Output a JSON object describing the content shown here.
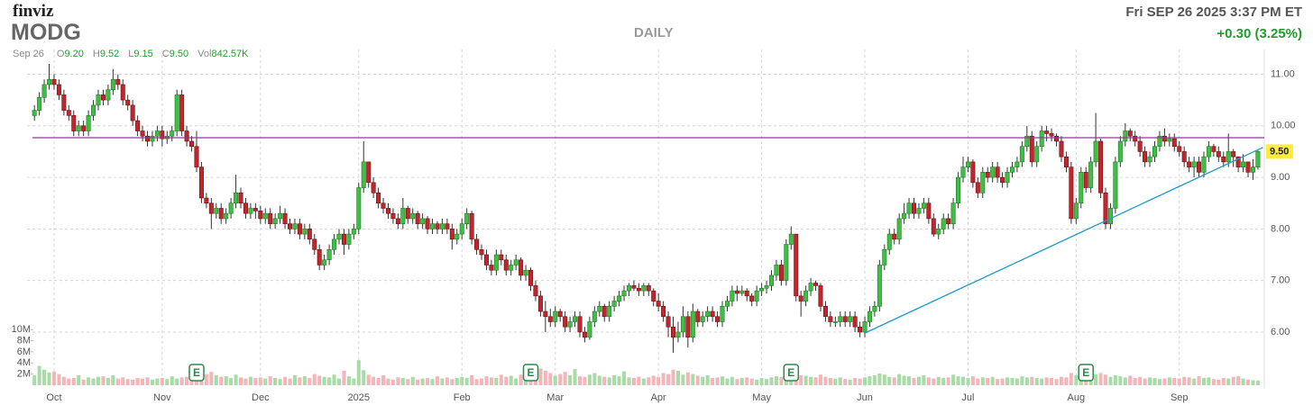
{
  "header": {
    "logo": "finviz",
    "ticker": "MODG",
    "timeframe": "DAILY",
    "datetime": "Fri SEP 26 2025 3:37 PM ET",
    "change": "+0.30 (3.25%)",
    "quote": {
      "date": "Sep 26",
      "o_label": "O",
      "o": "9.20",
      "h_label": "H",
      "h": "9.52",
      "l_label": "L",
      "l": "9.15",
      "c_label": "C",
      "c": "9.50",
      "vol_label": "Vol",
      "vol": "842.57K"
    }
  },
  "chart_data": {
    "type": "candlestick",
    "grid": true,
    "xlim": [
      -1.5,
      250.3
    ],
    "xticks": [
      {
        "value": 4,
        "label": "Oct"
      },
      {
        "value": 26,
        "label": "Nov"
      },
      {
        "value": 46,
        "label": "Dec"
      },
      {
        "value": 66,
        "label": "2025"
      },
      {
        "value": 87,
        "label": "Feb"
      },
      {
        "value": 106,
        "label": "Mar"
      },
      {
        "value": 127,
        "label": "Apr"
      },
      {
        "value": 148,
        "label": "May"
      },
      {
        "value": 169,
        "label": "Jun"
      },
      {
        "value": 190,
        "label": "Jul"
      },
      {
        "value": 212,
        "label": "Aug"
      },
      {
        "value": 233,
        "label": "Sep"
      }
    ],
    "ylim": [
      5.72,
      11.48
    ],
    "yticks": [
      {
        "value": 6,
        "label": "6.00"
      },
      {
        "value": 7,
        "label": "7.00"
      },
      {
        "value": 8,
        "label": "8.00"
      },
      {
        "value": 9,
        "label": "9.00"
      },
      {
        "value": 10,
        "label": "10.00"
      },
      {
        "value": 11,
        "label": "11.00"
      }
    ],
    "up_color": "#3fbf45",
    "down_color": "#c0262c",
    "open": [
      10.2,
      10.3,
      10.55,
      10.8,
      10.9,
      10.8,
      10.6,
      10.3,
      10.2,
      9.9,
      10.0,
      9.9,
      10.2,
      10.4,
      10.6,
      10.5,
      10.7,
      10.9,
      10.8,
      10.5,
      10.4,
      10.1,
      9.9,
      9.8,
      9.7,
      9.8,
      9.9,
      9.75,
      9.8,
      9.9,
      10.6,
      9.9,
      9.7,
      9.6,
      9.2,
      8.6,
      8.5,
      8.3,
      8.4,
      8.2,
      8.3,
      8.5,
      8.7,
      8.5,
      8.3,
      8.4,
      8.35,
      8.2,
      8.3,
      8.1,
      8.2,
      8.3,
      8.1,
      8.0,
      8.1,
      7.9,
      8.0,
      7.8,
      7.6,
      7.3,
      7.4,
      7.6,
      7.8,
      7.9,
      7.7,
      7.9,
      8.0,
      8.8,
      9.3,
      8.9,
      8.7,
      8.5,
      8.4,
      8.3,
      8.2,
      8.1,
      8.4,
      8.2,
      8.3,
      8.1,
      8.2,
      8.0,
      8.1,
      8.0,
      8.1,
      8.0,
      7.8,
      7.9,
      8.1,
      8.3,
      7.8,
      7.6,
      7.5,
      7.3,
      7.2,
      7.5,
      7.4,
      7.2,
      7.3,
      7.4,
      7.1,
      7.2,
      6.9,
      6.7,
      6.4,
      6.3,
      6.2,
      6.4,
      6.3,
      6.1,
      6.2,
      6.3,
      6.0,
      5.9,
      6.2,
      6.4,
      6.5,
      6.3,
      6.5,
      6.6,
      6.7,
      6.8,
      6.9,
      6.85,
      6.8,
      6.9,
      6.8,
      6.6,
      6.5,
      6.3,
      6.1,
      5.9,
      6.0,
      6.3,
      5.9,
      6.4,
      6.2,
      6.3,
      6.4,
      6.3,
      6.2,
      6.5,
      6.6,
      6.8,
      6.75,
      6.8,
      6.7,
      6.6,
      6.8,
      6.85,
      6.9,
      7.1,
      7.3,
      7.0,
      7.7,
      7.9,
      6.7,
      6.6,
      6.8,
      6.95,
      6.9,
      6.5,
      6.3,
      6.2,
      6.2,
      6.3,
      6.2,
      6.3,
      6.1,
      6.0,
      6.2,
      6.4,
      6.5,
      7.3,
      7.6,
      7.9,
      7.8,
      8.2,
      8.3,
      8.5,
      8.3,
      8.4,
      8.5,
      8.2,
      7.9,
      8.0,
      8.2,
      8.1,
      8.5,
      9.0,
      9.2,
      9.3,
      8.9,
      8.7,
      9.1,
      9.0,
      9.2,
      9.0,
      8.9,
      9.1,
      9.2,
      9.3,
      9.6,
      9.8,
      9.3,
      9.6,
      9.9,
      9.85,
      9.8,
      9.7,
      9.4,
      9.2,
      8.2,
      8.5,
      9.1,
      8.8,
      9.3,
      9.7,
      8.7,
      8.1,
      8.4,
      9.3,
      9.7,
      9.9,
      9.8,
      9.7,
      9.5,
      9.3,
      9.4,
      9.6,
      9.8,
      9.7,
      9.75,
      9.6,
      9.5,
      9.3,
      9.2,
      9.3,
      9.1,
      9.4,
      9.6,
      9.5,
      9.4,
      9.3,
      9.5,
      9.4,
      9.2,
      9.3,
      9.1,
      9.2
    ],
    "high": [
      10.4,
      10.65,
      10.9,
      11.2,
      11.0,
      10.9,
      10.7,
      10.4,
      10.3,
      10.1,
      10.1,
      10.3,
      10.5,
      10.7,
      10.7,
      10.8,
      11.1,
      11.0,
      10.9,
      10.6,
      10.5,
      10.2,
      10.0,
      9.9,
      9.9,
      10.0,
      10.0,
      9.9,
      10.0,
      10.7,
      10.7,
      10.0,
      9.8,
      9.9,
      9.3,
      8.7,
      8.6,
      8.5,
      8.5,
      8.4,
      8.6,
      9.05,
      8.8,
      8.6,
      8.5,
      8.5,
      8.45,
      8.4,
      8.4,
      8.3,
      8.45,
      8.4,
      8.2,
      8.2,
      8.2,
      8.1,
      8.1,
      7.9,
      7.7,
      7.5,
      7.7,
      7.9,
      8.0,
      8.0,
      8.0,
      8.1,
      8.9,
      9.7,
      9.3,
      9.0,
      8.8,
      8.6,
      8.5,
      8.4,
      8.3,
      8.6,
      8.45,
      8.4,
      8.35,
      8.3,
      8.25,
      8.2,
      8.15,
      8.2,
      8.2,
      8.1,
      8.0,
      8.2,
      8.4,
      8.35,
      7.9,
      7.7,
      7.6,
      7.4,
      7.6,
      7.6,
      7.5,
      7.4,
      7.5,
      7.45,
      7.3,
      7.25,
      7.0,
      6.8,
      6.6,
      6.45,
      6.5,
      6.45,
      6.4,
      6.3,
      6.4,
      6.4,
      6.1,
      6.3,
      6.5,
      6.6,
      6.55,
      6.6,
      6.7,
      6.8,
      6.9,
      6.95,
      7.0,
      6.95,
      6.95,
      6.95,
      6.85,
      6.75,
      6.6,
      6.4,
      6.3,
      6.2,
      6.5,
      6.4,
      6.55,
      6.45,
      6.4,
      6.5,
      6.5,
      6.4,
      6.6,
      6.7,
      6.9,
      6.9,
      6.9,
      6.85,
      6.75,
      6.9,
      6.95,
      7.0,
      7.2,
      7.4,
      7.4,
      7.8,
      8.05,
      7.9,
      6.8,
      6.9,
      7.05,
      7.0,
      6.95,
      6.6,
      6.4,
      6.3,
      6.4,
      6.4,
      6.4,
      6.4,
      6.2,
      6.3,
      6.5,
      6.6,
      7.4,
      7.7,
      8.0,
      8.0,
      8.3,
      8.5,
      8.6,
      8.6,
      8.5,
      8.6,
      8.6,
      8.3,
      8.1,
      8.3,
      8.3,
      8.6,
      9.1,
      9.4,
      9.4,
      9.35,
      9.0,
      9.2,
      9.2,
      9.3,
      9.3,
      9.1,
      9.2,
      9.3,
      9.4,
      9.7,
      10.0,
      9.9,
      9.7,
      10.0,
      10.0,
      9.95,
      9.85,
      9.8,
      9.5,
      9.3,
      8.6,
      9.2,
      9.2,
      9.4,
      10.25,
      9.75,
      8.8,
      8.5,
      9.4,
      9.8,
      10.05,
      9.95,
      9.9,
      9.8,
      9.6,
      9.5,
      9.7,
      9.9,
      9.95,
      9.85,
      9.85,
      9.7,
      9.6,
      9.4,
      9.4,
      9.4,
      9.5,
      9.7,
      9.65,
      9.6,
      9.5,
      9.85,
      9.55,
      9.4,
      9.45,
      9.3,
      9.35,
      9.52
    ],
    "low": [
      10.1,
      10.2,
      10.45,
      10.7,
      10.7,
      10.5,
      10.2,
      10.1,
      9.8,
      9.8,
      9.8,
      9.8,
      10.1,
      10.3,
      10.4,
      10.4,
      10.6,
      10.7,
      10.4,
      10.3,
      10.0,
      9.8,
      9.7,
      9.6,
      9.6,
      9.7,
      9.6,
      9.65,
      9.7,
      9.8,
      9.8,
      9.6,
      9.5,
      9.1,
      8.5,
      8.4,
      8.0,
      8.2,
      8.1,
      8.1,
      8.2,
      8.4,
      8.4,
      8.2,
      8.2,
      8.2,
      8.1,
      8.1,
      8.0,
      8.0,
      8.1,
      8.0,
      7.9,
      7.9,
      7.8,
      7.8,
      7.7,
      7.5,
      7.2,
      7.2,
      7.3,
      7.5,
      7.7,
      7.5,
      7.6,
      7.8,
      7.9,
      8.7,
      8.8,
      8.6,
      8.4,
      8.3,
      8.2,
      8.1,
      8.0,
      8.0,
      8.1,
      8.1,
      8.0,
      8.0,
      7.9,
      7.9,
      7.9,
      7.9,
      7.9,
      7.6,
      7.7,
      7.8,
      8.0,
      7.7,
      7.5,
      7.4,
      7.2,
      7.1,
      7.1,
      7.3,
      7.1,
      7.1,
      7.2,
      7.0,
      7.0,
      6.8,
      6.6,
      6.3,
      6.0,
      6.1,
      6.1,
      6.2,
      6.0,
      6.0,
      6.1,
      5.9,
      5.8,
      5.85,
      6.1,
      6.3,
      6.2,
      6.2,
      6.4,
      6.5,
      6.6,
      6.7,
      6.8,
      6.7,
      6.7,
      6.7,
      6.5,
      6.4,
      6.2,
      5.9,
      5.6,
      5.8,
      5.9,
      5.7,
      5.8,
      6.1,
      6.1,
      6.2,
      6.2,
      6.1,
      6.1,
      6.4,
      6.5,
      6.6,
      6.7,
      6.6,
      6.5,
      6.5,
      6.7,
      6.75,
      6.8,
      7.0,
      6.9,
      6.9,
      7.6,
      6.6,
      6.3,
      6.5,
      6.7,
      6.8,
      6.4,
      6.2,
      6.1,
      6.1,
      6.1,
      6.1,
      6.1,
      6.0,
      5.9,
      5.9,
      6.1,
      6.3,
      6.4,
      7.2,
      7.5,
      7.7,
      7.7,
      8.1,
      8.2,
      8.2,
      8.2,
      8.3,
      8.1,
      7.85,
      7.8,
      7.9,
      8.0,
      8.0,
      8.4,
      8.9,
      9.1,
      8.8,
      8.6,
      8.6,
      8.9,
      8.9,
      8.9,
      8.8,
      8.8,
      9.0,
      9.1,
      9.2,
      9.5,
      9.2,
      9.2,
      9.5,
      9.7,
      9.7,
      9.6,
      9.3,
      9.1,
      8.1,
      8.1,
      8.4,
      8.7,
      8.7,
      9.2,
      8.6,
      8.0,
      8.0,
      8.3,
      9.2,
      9.6,
      9.7,
      9.6,
      9.4,
      9.2,
      9.2,
      9.3,
      9.5,
      9.6,
      9.6,
      9.5,
      9.4,
      9.2,
      9.1,
      9.0,
      9.0,
      9.0,
      9.3,
      9.4,
      9.3,
      9.2,
      9.2,
      9.2,
      9.1,
      9.1,
      9.0,
      8.95,
      9.15
    ],
    "close": [
      10.3,
      10.55,
      10.8,
      10.9,
      10.8,
      10.6,
      10.3,
      10.2,
      9.9,
      10.0,
      9.9,
      10.2,
      10.4,
      10.6,
      10.5,
      10.7,
      10.9,
      10.8,
      10.5,
      10.4,
      10.1,
      9.9,
      9.8,
      9.7,
      9.8,
      9.9,
      9.75,
      9.8,
      9.9,
      10.6,
      9.9,
      9.7,
      9.6,
      9.2,
      8.6,
      8.5,
      8.3,
      8.4,
      8.2,
      8.3,
      8.5,
      8.7,
      8.5,
      8.3,
      8.4,
      8.35,
      8.2,
      8.3,
      8.1,
      8.2,
      8.3,
      8.1,
      8.0,
      8.1,
      7.9,
      8.0,
      7.8,
      7.6,
      7.3,
      7.4,
      7.6,
      7.8,
      7.9,
      7.7,
      7.9,
      8.0,
      8.8,
      9.3,
      8.9,
      8.7,
      8.5,
      8.4,
      8.3,
      8.2,
      8.1,
      8.4,
      8.2,
      8.3,
      8.1,
      8.2,
      8.0,
      8.1,
      8.0,
      8.1,
      8.0,
      7.8,
      7.9,
      8.1,
      8.3,
      7.8,
      7.6,
      7.5,
      7.3,
      7.2,
      7.5,
      7.4,
      7.2,
      7.3,
      7.4,
      7.1,
      7.2,
      6.9,
      6.7,
      6.4,
      6.3,
      6.2,
      6.4,
      6.3,
      6.1,
      6.2,
      6.3,
      6.0,
      5.9,
      6.2,
      6.4,
      6.5,
      6.3,
      6.5,
      6.6,
      6.7,
      6.8,
      6.9,
      6.85,
      6.8,
      6.9,
      6.8,
      6.6,
      6.5,
      6.3,
      6.1,
      5.9,
      6.0,
      6.3,
      5.9,
      6.4,
      6.2,
      6.3,
      6.4,
      6.3,
      6.2,
      6.5,
      6.6,
      6.8,
      6.75,
      6.8,
      6.7,
      6.6,
      6.8,
      6.85,
      6.9,
      7.1,
      7.3,
      7.0,
      7.7,
      7.9,
      6.7,
      6.6,
      6.8,
      6.95,
      6.9,
      6.5,
      6.3,
      6.2,
      6.2,
      6.3,
      6.2,
      6.3,
      6.1,
      6.0,
      6.2,
      6.4,
      6.5,
      7.3,
      7.6,
      7.9,
      7.8,
      8.2,
      8.3,
      8.5,
      8.3,
      8.4,
      8.5,
      8.2,
      7.9,
      8.0,
      8.2,
      8.1,
      8.5,
      9.0,
      9.2,
      9.3,
      8.9,
      8.7,
      9.1,
      9.0,
      9.2,
      9.0,
      8.9,
      9.1,
      9.2,
      9.3,
      9.6,
      9.8,
      9.3,
      9.6,
      9.9,
      9.85,
      9.8,
      9.7,
      9.4,
      9.2,
      8.2,
      8.5,
      9.1,
      8.8,
      9.3,
      9.7,
      8.7,
      8.1,
      8.4,
      9.3,
      9.7,
      9.9,
      9.8,
      9.7,
      9.5,
      9.3,
      9.4,
      9.6,
      9.8,
      9.7,
      9.75,
      9.6,
      9.5,
      9.3,
      9.2,
      9.3,
      9.1,
      9.4,
      9.6,
      9.5,
      9.4,
      9.3,
      9.5,
      9.4,
      9.2,
      9.3,
      9.1,
      9.2,
      9.5
    ],
    "volume": {
      "ylim": [
        0,
        10.2
      ],
      "up_color": "#a8dba5",
      "down_color": "#f5b5b8",
      "yticks": [
        {
          "value": 2,
          "label": "2M"
        },
        {
          "value": 4,
          "label": "4M"
        },
        {
          "value": 6,
          "label": "6M"
        },
        {
          "value": 8,
          "label": "8M"
        },
        {
          "value": 10,
          "label": "10M"
        }
      ],
      "values": [
        1.8,
        3.5,
        2.8,
        2.3,
        2.5,
        2.0,
        1.5,
        1.2,
        1.3,
        1.8,
        1.0,
        1.4,
        1.2,
        1.5,
        1.6,
        1.3,
        1.8,
        1.2,
        1.4,
        1.1,
        1.0,
        1.3,
        1.2,
        1.4,
        1.0,
        1.2,
        1.3,
        1.1,
        1.6,
        1.2,
        1.4,
        1.5,
        1.2,
        1.1,
        3.3,
        2.0,
        2.4,
        1.8,
        1.5,
        1.6,
        1.3,
        1.9,
        1.4,
        1.2,
        1.5,
        1.3,
        1.4,
        1.2,
        1.6,
        1.3,
        1.1,
        1.5,
        1.2,
        1.8,
        1.4,
        1.6,
        1.3,
        2.0,
        1.7,
        1.5,
        1.4,
        1.9,
        1.2,
        2.6,
        1.6,
        1.2,
        4.5,
        2.7,
        1.9,
        1.5,
        1.3,
        1.8,
        1.2,
        1.0,
        1.4,
        1.3,
        1.1,
        1.5,
        1.0,
        1.2,
        1.3,
        1.1,
        1.6,
        1.2,
        1.4,
        1.1,
        1.3,
        1.5,
        1.3,
        1.8,
        1.1,
        1.2,
        1.6,
        1.4,
        1.3,
        1.9,
        1.5,
        1.7,
        1.2,
        1.9,
        1.4,
        1.6,
        2.3,
        3.0,
        2.6,
        2.2,
        1.7,
        2.0,
        2.4,
        1.8,
        2.9,
        1.6,
        1.5,
        1.9,
        2.2,
        1.7,
        1.5,
        1.4,
        1.8,
        1.6,
        2.5,
        1.4,
        1.3,
        1.5,
        1.2,
        1.4,
        1.7,
        1.5,
        2.2,
        2.0,
        2.8,
        2.6,
        1.9,
        2.3,
        2.0,
        1.7,
        1.5,
        1.8,
        1.3,
        1.4,
        1.6,
        1.2,
        1.5,
        1.1,
        1.3,
        1.4,
        1.2,
        1.0,
        1.3,
        1.1,
        1.4,
        1.6,
        1.5,
        2.3,
        3.2,
        2.0,
        1.8,
        1.7,
        1.5,
        1.4,
        1.9,
        1.5,
        1.3,
        1.2,
        1.4,
        1.1,
        1.0,
        1.3,
        1.2,
        1.4,
        1.6,
        1.8,
        2.1,
        1.9,
        1.5,
        1.4,
        2.0,
        1.7,
        1.6,
        1.3,
        1.5,
        1.8,
        1.4,
        1.2,
        1.5,
        1.3,
        1.4,
        1.9,
        1.6,
        1.5,
        1.3,
        1.6,
        1.2,
        1.4,
        1.3,
        1.5,
        1.1,
        1.2,
        1.4,
        1.3,
        1.2,
        1.6,
        1.4,
        1.5,
        1.3,
        1.2,
        1.4,
        1.3,
        1.1,
        1.5,
        1.4,
        2.2,
        1.8,
        1.7,
        1.5,
        1.9,
        2.0,
        2.2,
        1.9,
        1.5,
        1.8,
        1.6,
        1.4,
        1.7,
        1.3,
        1.5,
        1.2,
        1.4,
        1.3,
        1.1,
        1.2,
        1.4,
        1.3,
        1.2,
        1.5,
        1.4,
        1.2,
        1.6,
        1.3,
        1.4,
        1.1,
        1.0,
        1.3,
        1.2,
        1.5,
        1.6,
        1.2,
        1.0,
        0.9,
        0.84257
      ]
    },
    "hline": {
      "value": 9.77,
      "color": "#8a3b96"
    },
    "trendline": {
      "x": [
        169,
        250
      ],
      "y": [
        5.98,
        9.58
      ],
      "color": "#1c9ac7"
    },
    "earnings": {
      "x": [
        33,
        101,
        154,
        214
      ],
      "label": "E",
      "color": "#2a8a4a"
    }
  }
}
